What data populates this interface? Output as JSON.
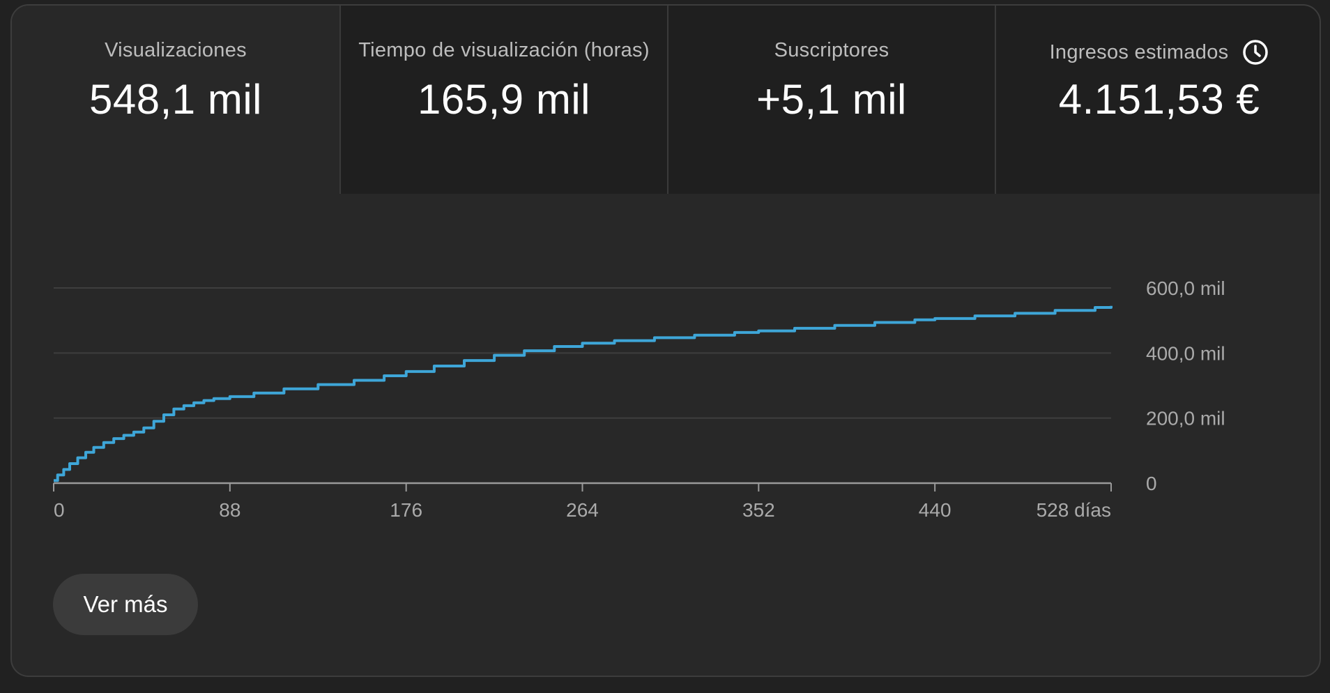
{
  "metrics": [
    {
      "label": "Visualizaciones",
      "value": "548,1 mil",
      "selected": true
    },
    {
      "label": "Tiempo de visualización (horas)",
      "value": "165,9 mil",
      "selected": false
    },
    {
      "label": "Suscriptores",
      "value": "+5,1 mil",
      "selected": false
    },
    {
      "label": "Ingresos estimados",
      "value": "4.151,53 €",
      "selected": false,
      "icon": "clock-icon"
    }
  ],
  "chart_data": {
    "type": "line",
    "x_unit": "días",
    "x": [
      0,
      2,
      5,
      8,
      12,
      16,
      20,
      25,
      30,
      35,
      40,
      45,
      50,
      55,
      60,
      65,
      70,
      75,
      80,
      88,
      100,
      115,
      132,
      150,
      165,
      176,
      190,
      205,
      220,
      235,
      250,
      264,
      280,
      300,
      320,
      340,
      352,
      370,
      390,
      410,
      430,
      440,
      460,
      480,
      500,
      520,
      528
    ],
    "series": [
      {
        "values": [
          8000,
          25000,
          42000,
          60000,
          78000,
          95000,
          110000,
          125000,
          137000,
          147000,
          157000,
          170000,
          190000,
          210000,
          228000,
          238000,
          247000,
          254000,
          260000,
          266000,
          277000,
          290000,
          303000,
          316000,
          330000,
          343000,
          360000,
          377000,
          393000,
          407000,
          420000,
          430000,
          438000,
          447000,
          455000,
          463000,
          468000,
          476000,
          485000,
          494000,
          502000,
          506000,
          514000,
          522000,
          531000,
          540000,
          545000
        ]
      }
    ],
    "xlim": [
      0,
      528
    ],
    "ylim": [
      0,
      600000
    ],
    "x_ticks": [
      "0",
      "88",
      "176",
      "264",
      "352",
      "440",
      "528 días"
    ],
    "x_tick_values": [
      0,
      88,
      176,
      264,
      352,
      440,
      528
    ],
    "y_ticks": [
      "0",
      "200,0 mil",
      "400,0 mil",
      "600,0 mil"
    ],
    "y_tick_values": [
      0,
      200000,
      400000,
      600000
    ],
    "grid": true,
    "line_color": "#3ea6d8"
  },
  "see_more_label": "Ver más",
  "colors": {
    "background": "#282828",
    "tab_unselected": "#1f1f1f",
    "accent_line": "#3ea6d8"
  }
}
